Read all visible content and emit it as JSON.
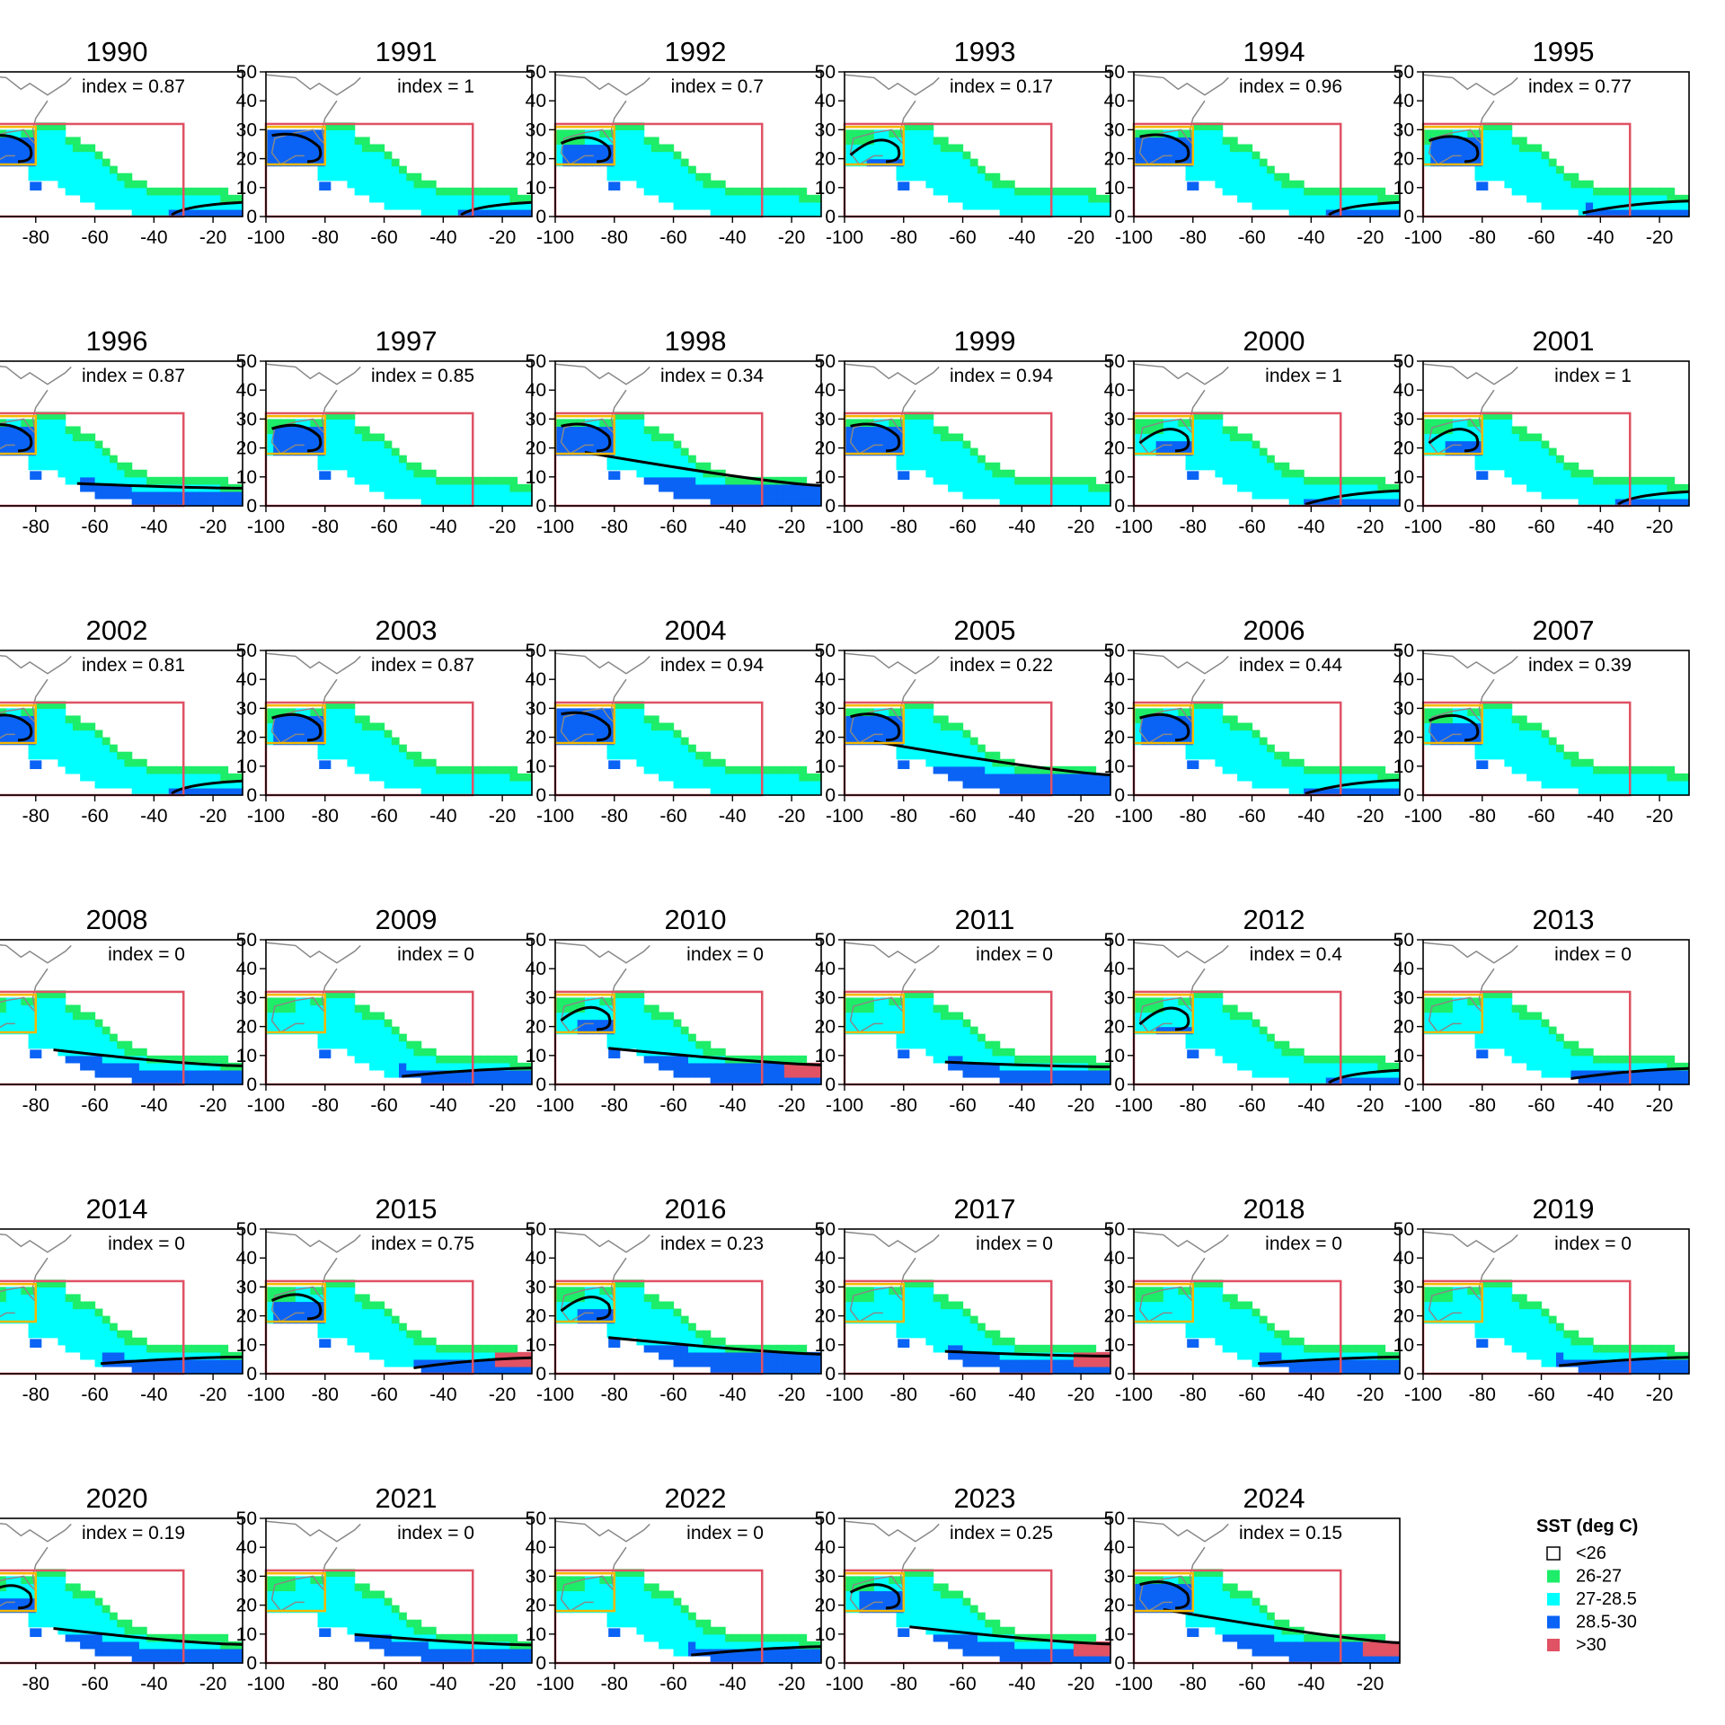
{
  "chart_data": {
    "type": "heatmap",
    "title": "",
    "xlabel": "",
    "ylabel": "",
    "xlim": [
      -100,
      -10
    ],
    "ylim": [
      0,
      50
    ],
    "x_ticks": [
      "-100",
      "-80",
      "-60",
      "-40",
      "-20"
    ],
    "y_ticks": [
      "0",
      "10",
      "20",
      "30",
      "40",
      "50"
    ],
    "index_prefix": "index = ",
    "boxes": {
      "main_region": {
        "lon": [
          -100,
          -30
        ],
        "lat": [
          0,
          32
        ],
        "color": "#e05264"
      },
      "gulf_region": {
        "lon": [
          -100,
          -80
        ],
        "lat": [
          18,
          31
        ],
        "color": "#f5b800"
      }
    },
    "legend": {
      "title": "SST (deg C)",
      "entries": [
        {
          "label": "<26",
          "color": "#ffffff"
        },
        {
          "label": "26-27",
          "color": "#1ded68"
        },
        {
          "label": "27-28.5",
          "color": "#00ffff"
        },
        {
          "label": "28.5-30",
          "color": "#0a63f5"
        },
        {
          "label": ">30",
          "color": "#e05264"
        }
      ]
    },
    "panels": [
      {
        "year": "1990",
        "index": "0.87",
        "warm": 0.9,
        "east": 0.3,
        "hot": 0
      },
      {
        "year": "1991",
        "index": "1",
        "warm": 1.0,
        "east": 0.3,
        "hot": 0
      },
      {
        "year": "1992",
        "index": "0.7",
        "warm": 0.7,
        "east": 0.0,
        "hot": 0
      },
      {
        "year": "1993",
        "index": "0.17",
        "warm": 0.25,
        "east": 0.0,
        "hot": 0
      },
      {
        "year": "1994",
        "index": "0.96",
        "warm": 0.95,
        "east": 0.3,
        "hot": 0
      },
      {
        "year": "1995",
        "index": "0.77",
        "warm": 0.8,
        "east": 0.45,
        "hot": 0
      },
      {
        "year": "1996",
        "index": "0.87",
        "warm": 0.9,
        "east": 0.7,
        "hot": 0
      },
      {
        "year": "1997",
        "index": "0.85",
        "warm": 0.85,
        "east": 0.0,
        "hot": 0
      },
      {
        "year": "1998",
        "index": "0.34",
        "warm": 0.95,
        "east": 1.0,
        "hot": 0
      },
      {
        "year": "1999",
        "index": "0.94",
        "warm": 0.95,
        "east": 0.0,
        "hot": 0
      },
      {
        "year": "2000",
        "index": "1",
        "warm": 0.3,
        "east": 0.4,
        "hot": 0
      },
      {
        "year": "2001",
        "index": "1",
        "warm": 0.3,
        "east": 0.3,
        "hot": 0
      },
      {
        "year": "2002",
        "index": "0.81",
        "warm": 0.8,
        "east": 0.3,
        "hot": 0
      },
      {
        "year": "2003",
        "index": "0.87",
        "warm": 0.85,
        "east": 0.0,
        "hot": 0
      },
      {
        "year": "2004",
        "index": "0.94",
        "warm": 1.0,
        "east": 0.0,
        "hot": 0
      },
      {
        "year": "2005",
        "index": "0.22",
        "warm": 0.9,
        "east": 1.0,
        "hot": 0
      },
      {
        "year": "2006",
        "index": "0.44",
        "warm": 0.85,
        "east": 0.4,
        "hot": 0
      },
      {
        "year": "2007",
        "index": "0.39",
        "warm": 0.75,
        "east": 0.0,
        "hot": 0
      },
      {
        "year": "2008",
        "index": "0",
        "warm": 0.0,
        "east": 0.8,
        "hot": 0
      },
      {
        "year": "2009",
        "index": "0",
        "warm": 0.0,
        "east": 0.55,
        "hot": 0
      },
      {
        "year": "2010",
        "index": "0",
        "warm": 0.35,
        "east": 0.9,
        "hot": 1
      },
      {
        "year": "2011",
        "index": "0",
        "warm": 0.0,
        "east": 0.7,
        "hot": 0
      },
      {
        "year": "2012",
        "index": "0.4",
        "warm": 0.2,
        "east": 0.3,
        "hot": 0
      },
      {
        "year": "2013",
        "index": "0",
        "warm": 0.0,
        "east": 0.5,
        "hot": 0
      },
      {
        "year": "2014",
        "index": "0",
        "warm": 0.0,
        "east": 0.6,
        "hot": 0
      },
      {
        "year": "2015",
        "index": "0.75",
        "warm": 0.7,
        "east": 0.5,
        "hot": 1
      },
      {
        "year": "2016",
        "index": "0.23",
        "warm": 0.3,
        "east": 0.9,
        "hot": 0
      },
      {
        "year": "2017",
        "index": "0",
        "warm": 0.0,
        "east": 0.7,
        "hot": 1
      },
      {
        "year": "2018",
        "index": "0",
        "warm": 0.0,
        "east": 0.6,
        "hot": 0
      },
      {
        "year": "2019",
        "index": "0",
        "warm": 0.0,
        "east": 0.55,
        "hot": 0
      },
      {
        "year": "2020",
        "index": "0.19",
        "warm": 0.45,
        "east": 0.8,
        "hot": 0
      },
      {
        "year": "2021",
        "index": "0",
        "warm": 0.0,
        "east": 0.75,
        "hot": 0
      },
      {
        "year": "2022",
        "index": "0",
        "warm": 0.0,
        "east": 0.55,
        "hot": 0
      },
      {
        "year": "2023",
        "index": "0.25",
        "warm": 0.6,
        "east": 0.85,
        "hot": 1
      },
      {
        "year": "2024",
        "index": "0.15",
        "warm": 0.9,
        "east": 1.0,
        "hot": 1
      }
    ]
  }
}
